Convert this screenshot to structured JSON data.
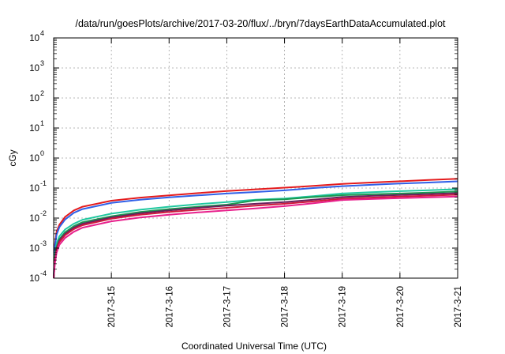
{
  "chart_data": {
    "type": "line",
    "title": "/data/run/goesPlots/archive/2017-03-20/flux/../bryn/7daysEarthDataAccumulated.plot",
    "xlabel": "Coordinated Universal Time (UTC)",
    "ylabel": "cGy",
    "y_scale": "log",
    "ylim": [
      0.0001,
      10000
    ],
    "xlim": [
      14.0,
      21.0
    ],
    "grid": true,
    "x_ticks": [
      {
        "label": "2017-3-15",
        "value": 15
      },
      {
        "label": "2017-3-16",
        "value": 16
      },
      {
        "label": "2017-3-17",
        "value": 17
      },
      {
        "label": "2017-3-18",
        "value": 18
      },
      {
        "label": "2017-3-19",
        "value": 19
      },
      {
        "label": "2017-3-20",
        "value": 20
      },
      {
        "label": "2017-3-21",
        "value": 21
      }
    ],
    "y_ticks": [
      {
        "base": "10",
        "exp": "-4",
        "value": 0.0001
      },
      {
        "base": "10",
        "exp": "-3",
        "value": 0.001
      },
      {
        "base": "10",
        "exp": "-2",
        "value": 0.01
      },
      {
        "base": "10",
        "exp": "-1",
        "value": 0.1
      },
      {
        "base": "10",
        "exp": "0",
        "value": 1
      },
      {
        "base": "10",
        "exp": "1",
        "value": 10
      },
      {
        "base": "10",
        "exp": "2",
        "value": 100
      },
      {
        "base": "10",
        "exp": "3",
        "value": 1000
      },
      {
        "base": "10",
        "exp": "4",
        "value": 10000
      }
    ],
    "x": [
      14.0,
      14.02,
      14.05,
      14.1,
      14.2,
      14.35,
      14.5,
      15.0,
      15.5,
      16.0,
      16.5,
      17.0,
      17.5,
      18.0,
      18.5,
      19.0,
      19.5,
      20.0,
      20.5,
      21.0
    ],
    "series": [
      {
        "color": "#e41a1c",
        "values": [
          0.0001,
          0.0013,
          0.0035,
          0.006,
          0.011,
          0.018,
          0.024,
          0.038,
          0.048,
          0.057,
          0.068,
          0.08,
          0.091,
          0.103,
          0.118,
          0.138,
          0.153,
          0.168,
          0.185,
          0.205
        ]
      },
      {
        "color": "#3060e8",
        "values": [
          0.0001,
          0.0011,
          0.0028,
          0.005,
          0.009,
          0.015,
          0.02,
          0.032,
          0.041,
          0.049,
          0.057,
          0.066,
          0.074,
          0.084,
          0.1,
          0.116,
          0.128,
          0.141,
          0.153,
          0.167
        ]
      },
      {
        "color": "#20c8a0",
        "values": [
          0.0001,
          0.0006,
          0.0014,
          0.0025,
          0.0042,
          0.0065,
          0.0088,
          0.014,
          0.019,
          0.024,
          0.029,
          0.034,
          0.041,
          0.045,
          0.054,
          0.066,
          0.073,
          0.079,
          0.085,
          0.092
        ]
      },
      {
        "color": "#1a9850",
        "values": [
          0.0001,
          0.00045,
          0.0011,
          0.002,
          0.0034,
          0.0054,
          0.0073,
          0.0115,
          0.016,
          0.02,
          0.024,
          0.028,
          0.039,
          0.042,
          0.05,
          0.058,
          0.062,
          0.066,
          0.071,
          0.077
        ]
      },
      {
        "color": "#6a1f5c",
        "values": [
          0.0001,
          0.0004,
          0.00095,
          0.0018,
          0.003,
          0.0048,
          0.0065,
          0.0105,
          0.0145,
          0.018,
          0.022,
          0.026,
          0.03,
          0.034,
          0.041,
          0.05,
          0.055,
          0.059,
          0.063,
          0.068
        ]
      },
      {
        "color": "#d0183c",
        "values": [
          0.0001,
          0.00035,
          0.00085,
          0.0016,
          0.0027,
          0.0043,
          0.0058,
          0.0095,
          0.013,
          0.016,
          0.019,
          0.022,
          0.026,
          0.03,
          0.036,
          0.044,
          0.048,
          0.052,
          0.056,
          0.06
        ]
      },
      {
        "color": "#e8208c",
        "values": [
          0.0001,
          0.0003,
          0.0007,
          0.0013,
          0.0022,
          0.0035,
          0.0048,
          0.0078,
          0.0105,
          0.013,
          0.0155,
          0.018,
          0.021,
          0.025,
          0.031,
          0.04,
          0.043,
          0.046,
          0.049,
          0.052
        ]
      }
    ]
  }
}
